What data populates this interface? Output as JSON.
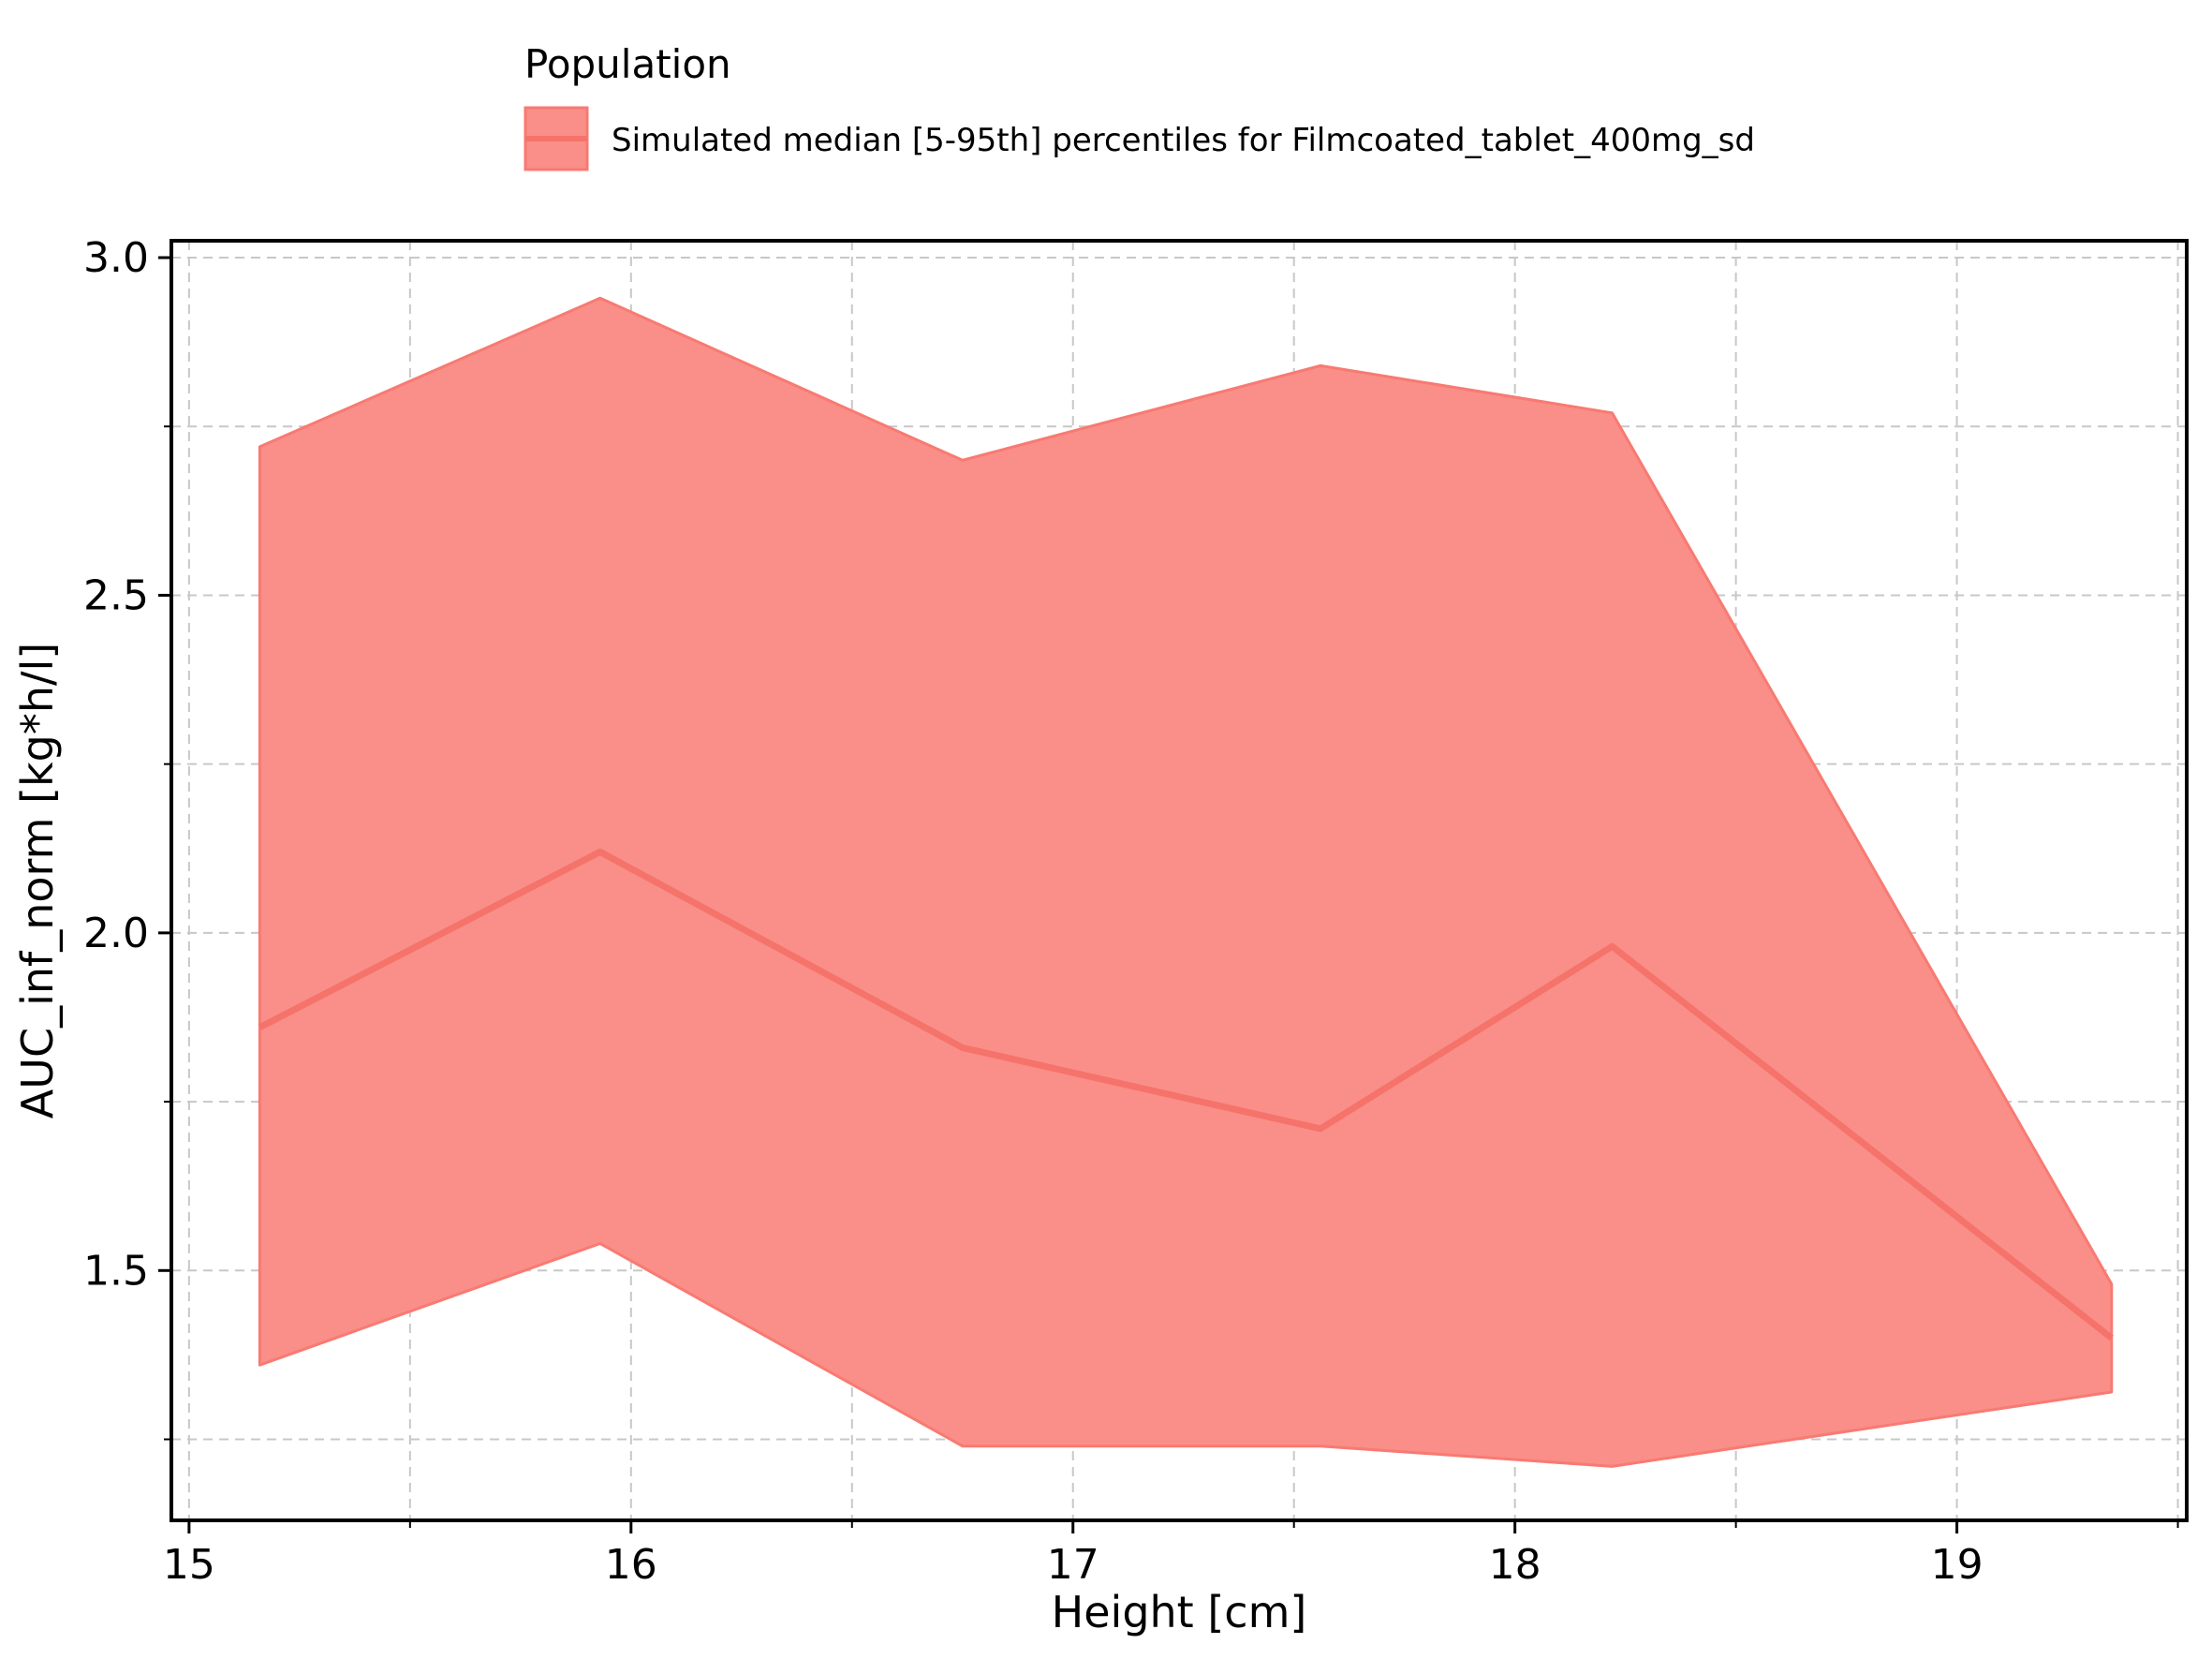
{
  "chart_data": {
    "type": "area",
    "legend": {
      "title": "Population",
      "placement": "top",
      "entries": [
        "Simulated median [5-95th] percentiles for Filmcoated_tablet_400mg_sd"
      ]
    },
    "xlabel": "Height [cm]",
    "ylabel": "AUC_inf_norm [kg*h/l]",
    "xlim": [
      14.96,
      19.52
    ],
    "ylim": [
      1.13,
      3.025
    ],
    "xticks": [
      15,
      16,
      17,
      18,
      19
    ],
    "xtick_labels": [
      "15",
      "16",
      "17",
      "18",
      "19"
    ],
    "yticks": [
      1.5,
      2.0,
      2.5,
      3.0
    ],
    "ytick_labels": [
      "1.5",
      "2.0",
      "2.5",
      "3.0"
    ],
    "x_minor_grid": [
      15.5,
      16.5,
      17.5,
      18.5,
      19.5
    ],
    "y_minor_grid": [
      1.25,
      1.75,
      2.25,
      2.75
    ],
    "grid": true,
    "series": [
      {
        "name": "Simulated median [5-95th] percentiles for Filmcoated_tablet_400mg_sd",
        "x": [
          15.16,
          15.93,
          16.75,
          17.56,
          18.22,
          19.35
        ],
        "median": [
          1.86,
          2.12,
          1.83,
          1.71,
          1.98,
          1.4
        ],
        "lower": [
          1.36,
          1.54,
          1.24,
          1.24,
          1.21,
          1.32
        ],
        "upper": [
          2.72,
          2.94,
          2.7,
          2.84,
          2.77,
          1.48
        ]
      }
    ],
    "colors": {
      "band_fill": "#f98f88",
      "band_edge": "#f87a72",
      "median_line": "#f5736b",
      "grid": "#c8c8c8",
      "axis": "#000000"
    }
  }
}
